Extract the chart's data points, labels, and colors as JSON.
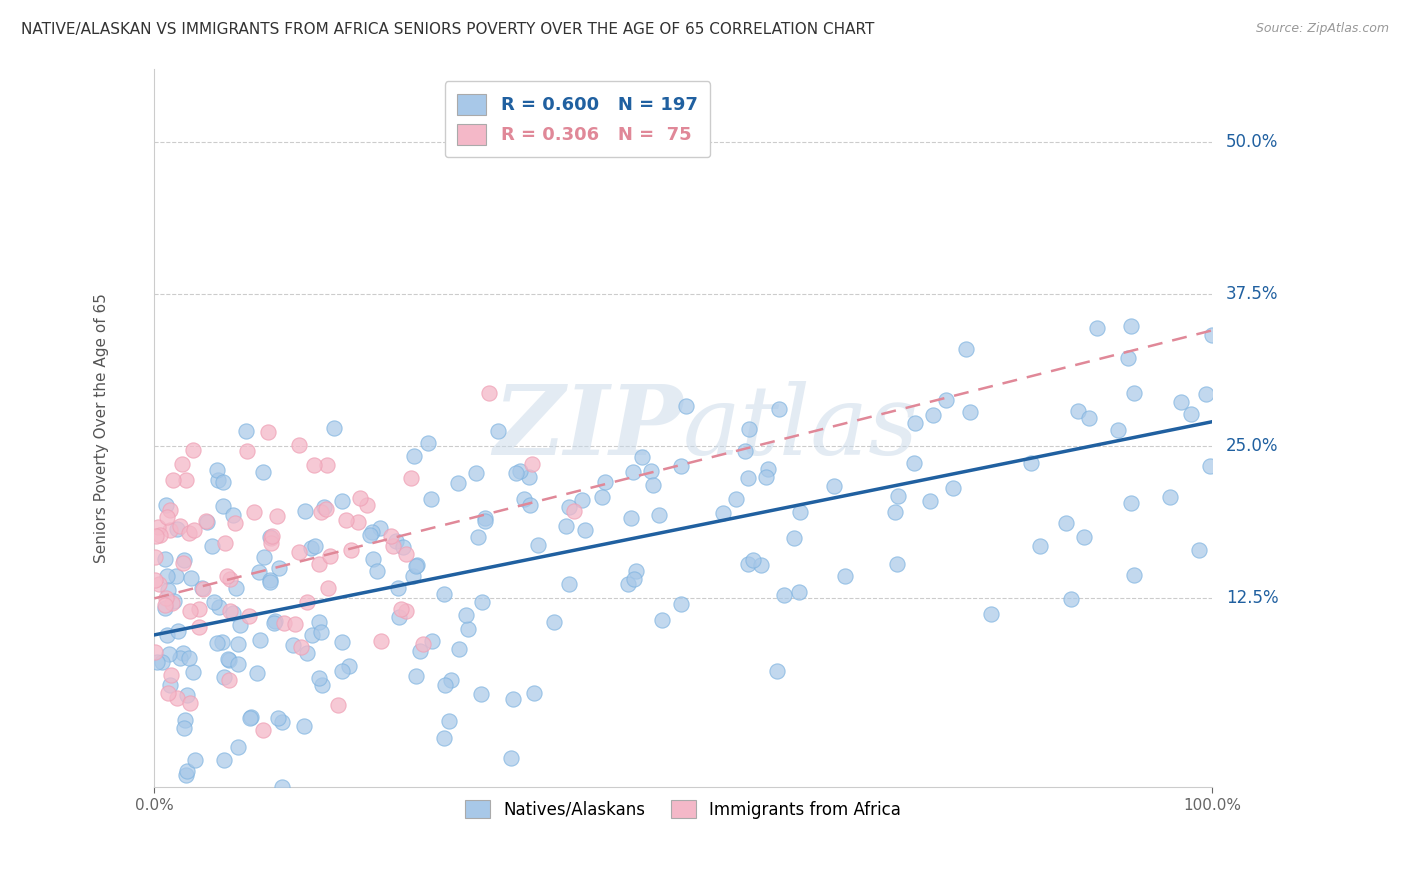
{
  "title": "NATIVE/ALASKAN VS IMMIGRANTS FROM AFRICA SENIORS POVERTY OVER THE AGE OF 65 CORRELATION CHART",
  "source": "Source: ZipAtlas.com",
  "ylabel": "Seniors Poverty Over the Age of 65",
  "xlim": [
    0,
    100
  ],
  "ylim": [
    -3,
    56
  ],
  "ytick_positions": [
    12.5,
    25.0,
    37.5,
    50.0
  ],
  "ytick_labels": [
    "12.5%",
    "25.0%",
    "37.5%",
    "50.0%"
  ],
  "blue_fill": "#A8C8E8",
  "blue_edge": "#7EB3E0",
  "pink_fill": "#F4B8C8",
  "pink_edge": "#EFA0B5",
  "blue_line_color": "#2060A0",
  "pink_line_color": "#E08898",
  "watermark_color": "#C8D8E8",
  "grid_color": "#CCCCCC",
  "title_fontsize": 11,
  "source_fontsize": 9,
  "label_fontsize": 11,
  "ytick_fontsize": 12,
  "legend_fontsize": 13,
  "blue_intercept": 9.5,
  "blue_slope": 0.175,
  "pink_intercept": 12.5,
  "pink_slope": 0.22,
  "seed": 77
}
